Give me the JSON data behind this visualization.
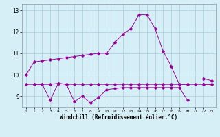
{
  "x": [
    0,
    1,
    2,
    3,
    4,
    5,
    6,
    7,
    8,
    9,
    10,
    11,
    12,
    13,
    14,
    15,
    16,
    17,
    18,
    19,
    20,
    21,
    22,
    23
  ],
  "line1": [
    10.0,
    10.6,
    10.65,
    10.7,
    10.75,
    10.8,
    10.85,
    10.9,
    10.95,
    11.0,
    11.0,
    11.5,
    11.9,
    12.15,
    12.8,
    12.8,
    12.15,
    11.1,
    10.4,
    9.55,
    9.55,
    null,
    9.82,
    9.72
  ],
  "line2": [
    9.55,
    9.55,
    9.55,
    9.55,
    9.6,
    9.55,
    9.55,
    9.55,
    9.55,
    9.55,
    9.55,
    9.55,
    9.55,
    9.55,
    9.55,
    9.55,
    9.55,
    9.55,
    9.55,
    9.55,
    9.55,
    9.55,
    9.55,
    9.55
  ],
  "line3": [
    null,
    9.55,
    9.55,
    8.82,
    9.6,
    9.55,
    8.75,
    9.0,
    8.68,
    8.95,
    9.3,
    9.35,
    9.4,
    9.4,
    9.4,
    9.4,
    9.4,
    9.4,
    9.4,
    9.4,
    8.82,
    null,
    9.55,
    9.55
  ],
  "line_color": "#990099",
  "bg_color": "#d6eef5",
  "grid_color": "#aaccdd",
  "xlabel": "Windchill (Refroidissement éolien,°C)",
  "ylabel_ticks": [
    9,
    10,
    11,
    12,
    13
  ],
  "xlim": [
    -0.5,
    23.5
  ],
  "ylim": [
    8.5,
    13.3
  ]
}
